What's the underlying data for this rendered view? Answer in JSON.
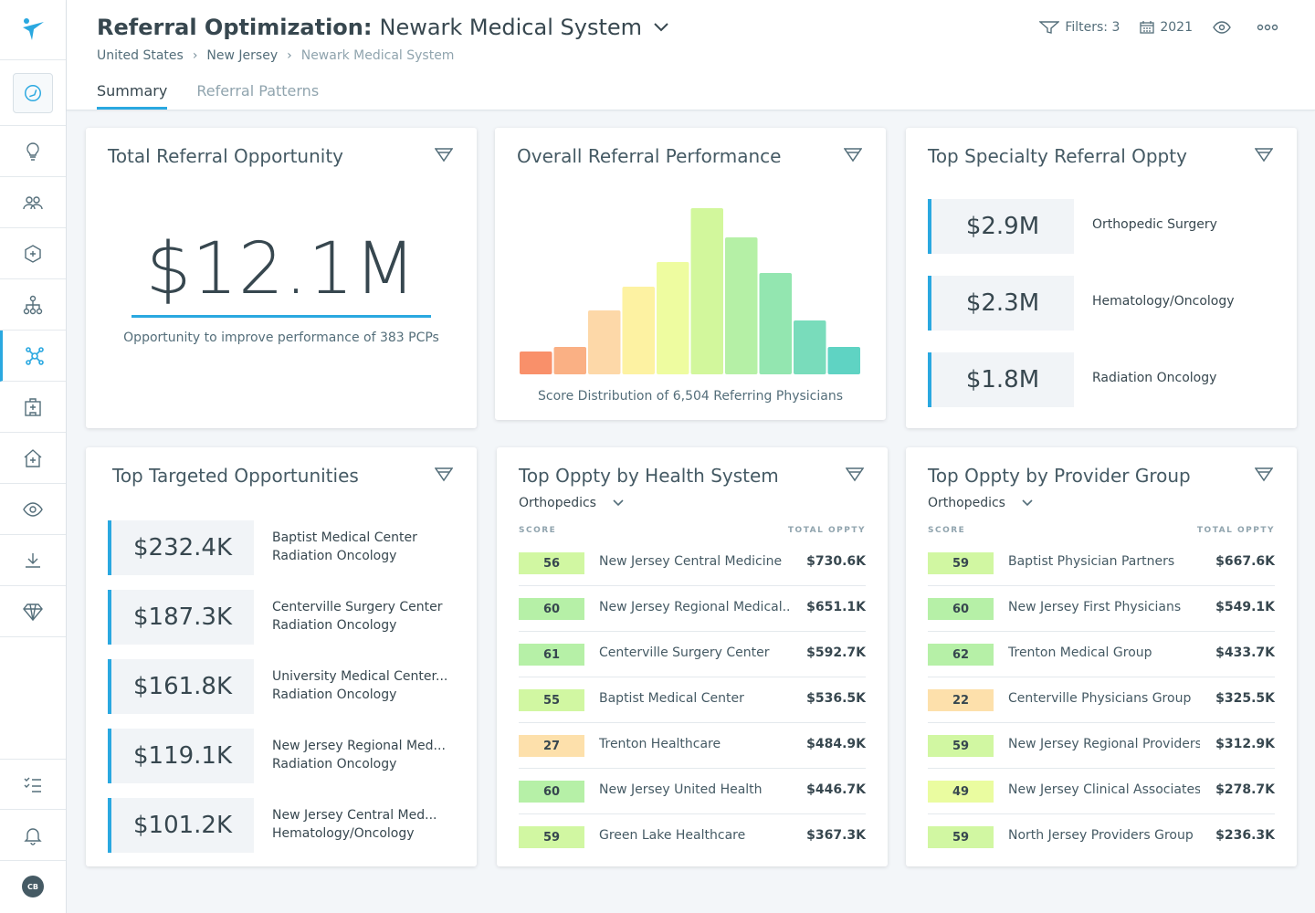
{
  "header": {
    "title_bold": "Referral Optimization:",
    "title_system": "Newark Medical System",
    "breadcrumb": [
      "United States",
      "New Jersey",
      "Newark Medical System"
    ],
    "tabs": [
      {
        "label": "Summary",
        "active": true
      },
      {
        "label": "Referral Patterns",
        "active": false
      }
    ],
    "filters_label": "Filters: 3",
    "year_label": "2021"
  },
  "sidebar": {
    "items": [
      "lightbulb-icon",
      "people-icon",
      "cube-network-icon",
      "hierarchy-icon",
      "hub-icon",
      "hospital-icon",
      "home-plus-icon",
      "eye-icon",
      "download-icon",
      "diamond-icon"
    ],
    "bottom": [
      "checklist-icon",
      "bell-icon"
    ],
    "avatar_initials": "CB"
  },
  "total_referral": {
    "title": "Total Referral Opportunity",
    "value": "$12.1M",
    "caption": "Opportunity to improve performance of 383 PCPs"
  },
  "overall_performance": {
    "title": "Overall Referral Performance",
    "caption": "Score Distribution of 6,504 Referring Physicians"
  },
  "chart_data": {
    "type": "bar",
    "title": "Overall Referral Performance",
    "xlabel": "Score Distribution of 6,504 Referring Physicians",
    "ylabel": "",
    "values": [
      25,
      30,
      70,
      96,
      123,
      182,
      150,
      111,
      59,
      30
    ],
    "colors": [
      "#f9906a",
      "#fab084",
      "#fdd8a8",
      "#fdf2a2",
      "#eefca0",
      "#d2f79c",
      "#b5f0a6",
      "#93e6b0",
      "#79dcbb",
      "#5fd3c3"
    ],
    "ylim": [
      0,
      190
    ]
  },
  "top_specialty": {
    "title": "Top Specialty Referral Oppty",
    "items": [
      {
        "value": "$2.9M",
        "label": "Orthopedic Surgery"
      },
      {
        "value": "$2.3M",
        "label": "Hematology/Oncology"
      },
      {
        "value": "$1.8M",
        "label": "Radiation Oncology"
      }
    ]
  },
  "top_targeted": {
    "title": "Top Targeted Opportunities",
    "items": [
      {
        "value": "$232.4K",
        "line1": "Baptist Medical Center",
        "line2": "Radiation Oncology"
      },
      {
        "value": "$187.3K",
        "line1": "Centerville Surgery Center",
        "line2": "Radiation Oncology"
      },
      {
        "value": "$161.8K",
        "line1": "University Medical Center...",
        "line2": "Radiation Oncology"
      },
      {
        "value": "$119.1K",
        "line1": "New Jersey Regional Med...",
        "line2": "Radiation Oncology"
      },
      {
        "value": "$101.2K",
        "line1": "New Jersey Central Med...",
        "line2": "Hematology/Oncology"
      }
    ]
  },
  "health_system": {
    "title": "Top Oppty by Health System",
    "dropdown": "Orthopedics",
    "col_score": "SCORE",
    "col_total": "TOTAL OPPTY",
    "rows": [
      {
        "score": "56",
        "color": "#d1f7a2",
        "name": "New Jersey Central Medicine",
        "value": "$730.6K"
      },
      {
        "score": "60",
        "color": "#b6f0a7",
        "name": "New Jersey Regional Medical...",
        "value": "$651.1K"
      },
      {
        "score": "61",
        "color": "#b6f0a7",
        "name": "Centerville Surgery Center",
        "value": "$592.7K"
      },
      {
        "score": "55",
        "color": "#d1f7a2",
        "name": "Baptist Medical Center",
        "value": "$536.5K"
      },
      {
        "score": "27",
        "color": "#fde0ab",
        "name": "Trenton Healthcare",
        "value": "$484.9K"
      },
      {
        "score": "60",
        "color": "#b6f0a7",
        "name": "New Jersey United Health",
        "value": "$446.7K"
      },
      {
        "score": "59",
        "color": "#d1f7a2",
        "name": "Green Lake Healthcare",
        "value": "$367.3K"
      }
    ]
  },
  "provider_group": {
    "title": "Top Oppty by Provider Group",
    "dropdown": "Orthopedics",
    "col_score": "SCORE",
    "col_total": "TOTAL OPPTY",
    "rows": [
      {
        "score": "59",
        "color": "#d1f7a2",
        "name": "Baptist Physician Partners",
        "value": "$667.6K"
      },
      {
        "score": "60",
        "color": "#b6f0a7",
        "name": "New Jersey First Physicians",
        "value": "$549.1K"
      },
      {
        "score": "62",
        "color": "#b6f0a7",
        "name": "Trenton Medical Group",
        "value": "$433.7K"
      },
      {
        "score": "22",
        "color": "#fde0ab",
        "name": "Centerville Physicians Group",
        "value": "$325.5K"
      },
      {
        "score": "59",
        "color": "#d1f7a2",
        "name": "New Jersey Regional Providers",
        "value": "$312.9K"
      },
      {
        "score": "49",
        "color": "#eafca0",
        "name": "New Jersey Clinical Associates",
        "value": "$278.7K"
      },
      {
        "score": "59",
        "color": "#d1f7a2",
        "name": "North Jersey Providers Group",
        "value": "$236.3K"
      }
    ]
  },
  "colors": {
    "accent": "#2aa8e0"
  }
}
